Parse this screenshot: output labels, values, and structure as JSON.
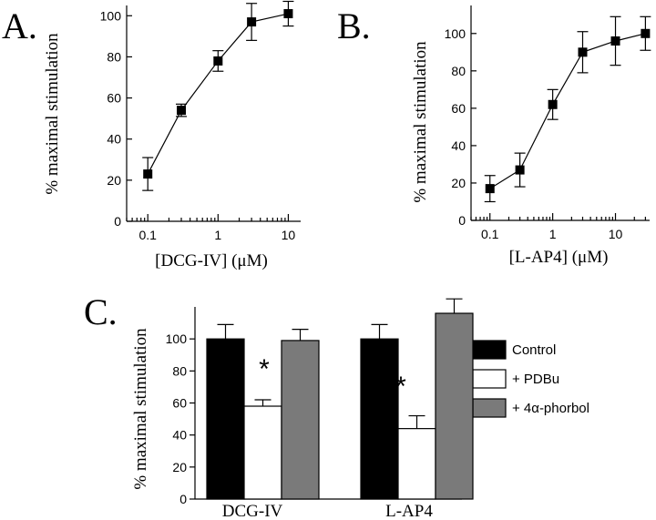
{
  "chart_data": [
    {
      "panel": "A.",
      "type": "line",
      "xscale": "log",
      "xlabel": "[DCG-IV] (μM)",
      "ylabel": "% maximal stimulation",
      "xlim": [
        0.05,
        15
      ],
      "ylim": [
        0,
        105
      ],
      "xticks": [
        0.1,
        1,
        10
      ],
      "xtick_labels": [
        "0.1",
        "1",
        "10"
      ],
      "yticks": [
        0,
        20,
        40,
        60,
        80,
        100
      ],
      "series": [
        {
          "x": [
            0.1,
            0.3,
            1,
            3,
            10
          ],
          "y": [
            23,
            54,
            78,
            97,
            101
          ],
          "err": [
            8,
            3,
            5,
            9,
            6
          ]
        }
      ]
    },
    {
      "panel": "B.",
      "type": "line",
      "xscale": "log",
      "xlabel": "[L-AP4] (μM)",
      "ylabel": "% maximal stimulation",
      "xlim": [
        0.05,
        35
      ],
      "ylim": [
        0,
        115
      ],
      "xticks": [
        0.1,
        1,
        10
      ],
      "xtick_labels": [
        "0.1",
        "1",
        "10"
      ],
      "yticks": [
        0,
        20,
        40,
        60,
        80,
        100
      ],
      "series": [
        {
          "x": [
            0.1,
            0.3,
            1,
            3,
            10,
            30
          ],
          "y": [
            17,
            27,
            62,
            90,
            96,
            100
          ],
          "err": [
            7,
            9,
            8,
            11,
            13,
            9
          ]
        }
      ]
    },
    {
      "panel": "C.",
      "type": "bar",
      "ylabel": "% maximal stimulation",
      "ylim": [
        0,
        120
      ],
      "yticks": [
        0,
        20,
        40,
        60,
        80,
        100
      ],
      "categories": [
        "DCG-IV",
        "L-AP4"
      ],
      "series": [
        {
          "name": "Control",
          "color": "#000000",
          "values": [
            100,
            100
          ],
          "err": [
            9,
            9
          ]
        },
        {
          "name": "+ PDBu",
          "color": "#ffffff",
          "values": [
            58,
            44
          ],
          "err": [
            4,
            8
          ]
        },
        {
          "name": "+ 4α-phorbol",
          "color": "#7a7a7a",
          "values": [
            99,
            116
          ],
          "err": [
            7,
            9
          ]
        }
      ],
      "significance": [
        "*",
        "*"
      ],
      "legend": "right"
    }
  ]
}
